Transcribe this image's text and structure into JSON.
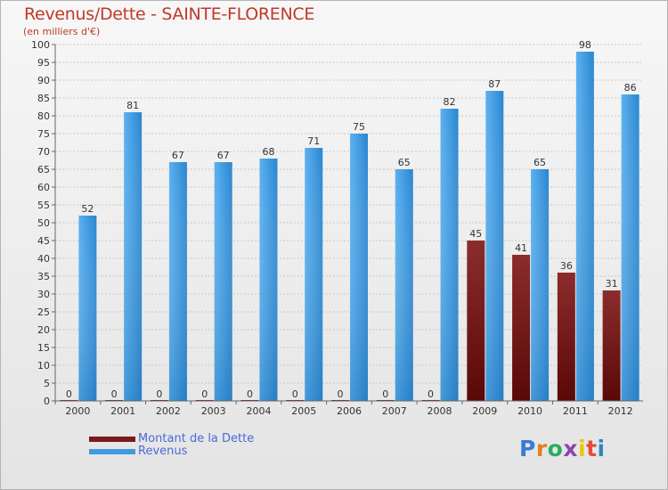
{
  "title": "Revenus/Dette - SAINTE-FLORENCE",
  "subtitle": "(en milliers d'€)",
  "legend": {
    "debt_label": "Montant de la Dette",
    "revenue_label": "Revenus"
  },
  "logo": {
    "letters": [
      "P",
      "r",
      "o",
      "x",
      "i",
      "t",
      "i"
    ],
    "colors": [
      "#3a7bd5",
      "#e67e22",
      "#27ae60",
      "#8e44ad",
      "#f1c40f",
      "#e74c3c",
      "#2e86c1"
    ]
  },
  "colors": {
    "debt": "#7a1a1a",
    "revenue": "#3f9be0"
  },
  "chart_data": {
    "type": "bar",
    "title": "Revenus/Dette - SAINTE-FLORENCE",
    "ylabel": "(en milliers d'€)",
    "xlabel": "",
    "ylim": [
      0,
      100
    ],
    "yticks": [
      0,
      5,
      10,
      15,
      20,
      25,
      30,
      35,
      40,
      45,
      50,
      55,
      60,
      65,
      70,
      75,
      80,
      85,
      90,
      95,
      100
    ],
    "grid": true,
    "categories": [
      "2000",
      "2001",
      "2002",
      "2003",
      "2004",
      "2005",
      "2006",
      "2007",
      "2008",
      "2009",
      "2010",
      "2011",
      "2012"
    ],
    "series": [
      {
        "name": "Montant de la Dette",
        "values": [
          0,
          0,
          0,
          0,
          0,
          0,
          0,
          0,
          0,
          45,
          41,
          36,
          31
        ]
      },
      {
        "name": "Revenus",
        "values": [
          52,
          81,
          67,
          67,
          68,
          71,
          75,
          65,
          82,
          87,
          65,
          98,
          86
        ]
      }
    ],
    "data_labels": {
      "debt": [
        "0",
        "0",
        "0",
        "0",
        "0",
        "0",
        "0",
        "0",
        "0",
        "45",
        "41",
        "36",
        "31"
      ],
      "revenue": [
        "52",
        "81",
        "67",
        "67",
        "68",
        "71",
        "75",
        "65",
        "82",
        "87",
        "65",
        "98",
        "86"
      ]
    },
    "legend_position": "bottom-left"
  }
}
